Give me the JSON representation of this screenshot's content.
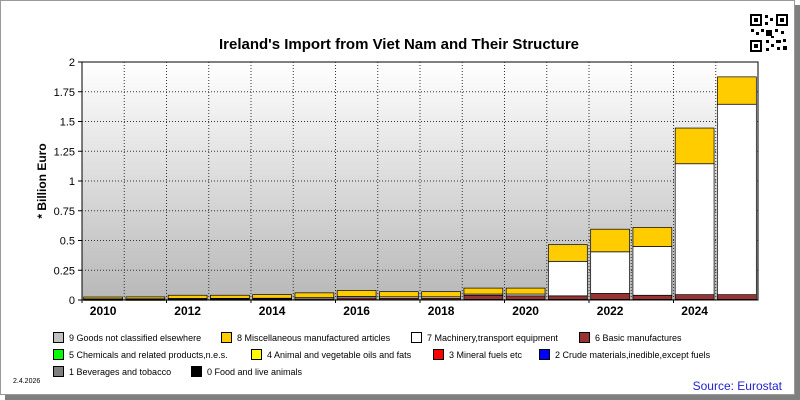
{
  "chart_data": {
    "type": "bar",
    "stacked": true,
    "title": "Ireland's Import from Viet Nam and Their Structure",
    "ylabel": "* Billion Euro",
    "xlabel": "",
    "ylim": [
      0,
      2
    ],
    "yticks": [
      "0",
      "0.25",
      "0.5",
      "0.75",
      "1",
      "1.25",
      "1.5",
      "1.75",
      "2"
    ],
    "categories": [
      "2010",
      "2011",
      "2012",
      "2013",
      "2014",
      "2015",
      "2016",
      "2017",
      "2018",
      "2019",
      "2020",
      "2021",
      "2022",
      "2023",
      "2024",
      "2025"
    ],
    "xtick_labels": [
      "2010",
      "2012",
      "2014",
      "2016",
      "2018",
      "2020",
      "2022",
      "2024"
    ],
    "grid": true,
    "legend_position": "bottom",
    "series": [
      {
        "name": "0 Food and live animals",
        "color": "#000000",
        "values": [
          0.001,
          0.001,
          0.002,
          0.002,
          0.002,
          0.002,
          0.003,
          0.003,
          0.003,
          0.005,
          0.005,
          0.005,
          0.005,
          0.005,
          0.005,
          0.005
        ]
      },
      {
        "name": "1 Beverages and tobacco",
        "color": "#7f7f7f",
        "values": [
          0,
          0,
          0,
          0,
          0,
          0,
          0,
          0,
          0,
          0,
          0,
          0,
          0,
          0,
          0,
          0
        ]
      },
      {
        "name": "2 Crude materials,inedible,except fuels",
        "color": "#0000ff",
        "values": [
          0,
          0,
          0,
          0,
          0,
          0,
          0,
          0,
          0,
          0,
          0,
          0,
          0,
          0,
          0,
          0
        ]
      },
      {
        "name": "3 Mineral fuels etc",
        "color": "#ff0000",
        "values": [
          0,
          0,
          0,
          0,
          0,
          0,
          0,
          0,
          0,
          0,
          0,
          0,
          0,
          0,
          0,
          0
        ]
      },
      {
        "name": "4 Animal and vegetable oils and fats",
        "color": "#ffff00",
        "values": [
          0,
          0,
          0,
          0,
          0,
          0,
          0,
          0,
          0,
          0,
          0,
          0,
          0,
          0,
          0,
          0
        ]
      },
      {
        "name": "5 Chemicals and related products,n.e.s.",
        "color": "#00ff00",
        "values": [
          0,
          0,
          0,
          0,
          0,
          0,
          0,
          0,
          0,
          0,
          0,
          0,
          0,
          0,
          0,
          0
        ]
      },
      {
        "name": "6 Basic manufactures",
        "color": "#993333",
        "values": [
          0.005,
          0.005,
          0.006,
          0.006,
          0.007,
          0.008,
          0.015,
          0.012,
          0.012,
          0.035,
          0.03,
          0.03,
          0.05,
          0.035,
          0.04,
          0.04
        ]
      },
      {
        "name": "7 Machinery,transport equipment",
        "color": "#ffffff",
        "values": [
          0.004,
          0.004,
          0.005,
          0.006,
          0.006,
          0.01,
          0.012,
          0.012,
          0.012,
          0.01,
          0.015,
          0.29,
          0.35,
          0.41,
          1.1,
          1.6
        ]
      },
      {
        "name": "8 Miscellaneous manufactured articles",
        "color": "#ffcc00",
        "values": [
          0.015,
          0.016,
          0.027,
          0.026,
          0.03,
          0.04,
          0.05,
          0.043,
          0.043,
          0.05,
          0.05,
          0.14,
          0.19,
          0.16,
          0.3,
          0.23
        ]
      },
      {
        "name": "9 Goods not classified elsewhere",
        "color": "#c0c0c0",
        "values": [
          0,
          0,
          0,
          0,
          0,
          0,
          0,
          0,
          0,
          0,
          0,
          0,
          0,
          0,
          0,
          0
        ]
      }
    ],
    "legend_rows": [
      [
        "9 Goods not classified elsewhere",
        "8 Miscellaneous manufactured articles",
        "7 Machinery,transport equipment",
        "6 Basic manufactures"
      ],
      [
        "5 Chemicals and related products,n.e.s.",
        "4 Animal and vegetable oils and fats",
        "3 Mineral fuels etc",
        "2 Crude materials,inedible,except fuels"
      ],
      [
        "1 Beverages and tobacco",
        "0 Food and live animals"
      ]
    ],
    "date_label": "2.4.2026",
    "source_label": "Source: Eurostat"
  },
  "colors": {
    "plot_gradient_top": "#ffffff",
    "plot_gradient_bottom": "#b8b8b8",
    "source_text": "#1f1fd0"
  },
  "icons": {
    "qr": "qr-code-icon"
  }
}
